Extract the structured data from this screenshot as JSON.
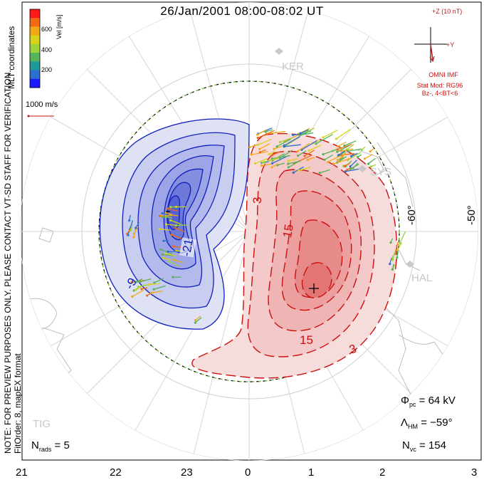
{
  "title": "26/Jan/2001 08:00-08:02 UT",
  "colorbar": {
    "label": "Vel [m/s]",
    "ticks": [
      "600",
      "400",
      "200"
    ],
    "colors": [
      "#1a1aff",
      "#2f6fd0",
      "#1f9a9a",
      "#55b35a",
      "#9ad33c",
      "#d8d21a",
      "#f0a818",
      "#f06a14",
      "#ff1a1a"
    ]
  },
  "coords_label": "MLT coordinates",
  "reference_vector": "1000 m/s",
  "imf": {
    "z_label": "+Z (10 nT)",
    "y_label": "+Y",
    "source": "OMNI IMF",
    "stat_mod": "Stat Mod: RG96",
    "condition": "Bz-, 4<BT<6"
  },
  "notice": "NOTE: FOR PREVIEW PURPOSES ONLY. PLEASE CONTACT VT-SD STAFF FOR VERIFICATION.",
  "fit_info": "FitOrder: 8, mapEX format",
  "stations": [
    "KER",
    "SYS",
    "HAL",
    "TIG"
  ],
  "lat_labels": [
    "-60°",
    "-50°"
  ],
  "contour_labels": {
    "negative": [
      "-21",
      "-9"
    ],
    "positive": [
      "3",
      "15",
      "15",
      "3"
    ]
  },
  "stats": {
    "phi_pc": {
      "symbol": "Φ",
      "sub": "pc",
      "value": " = 64 kV"
    },
    "lambda_hm": {
      "symbol": "Λ",
      "sub": "HM",
      "value": " = −59°"
    },
    "n_vc": {
      "symbol": "N",
      "sub": "vc",
      "value": " = 154"
    },
    "n_rads": {
      "symbol": "N",
      "sub": "rads",
      "value": " = 5"
    }
  },
  "mlt_ticks": [
    "21",
    "22",
    "23",
    "0",
    "1",
    "2",
    "3"
  ],
  "colors": {
    "negative": "#1020c0",
    "positive": "#cc1010",
    "grid": "#cccccc",
    "boundary": "#7ccc3a"
  }
}
